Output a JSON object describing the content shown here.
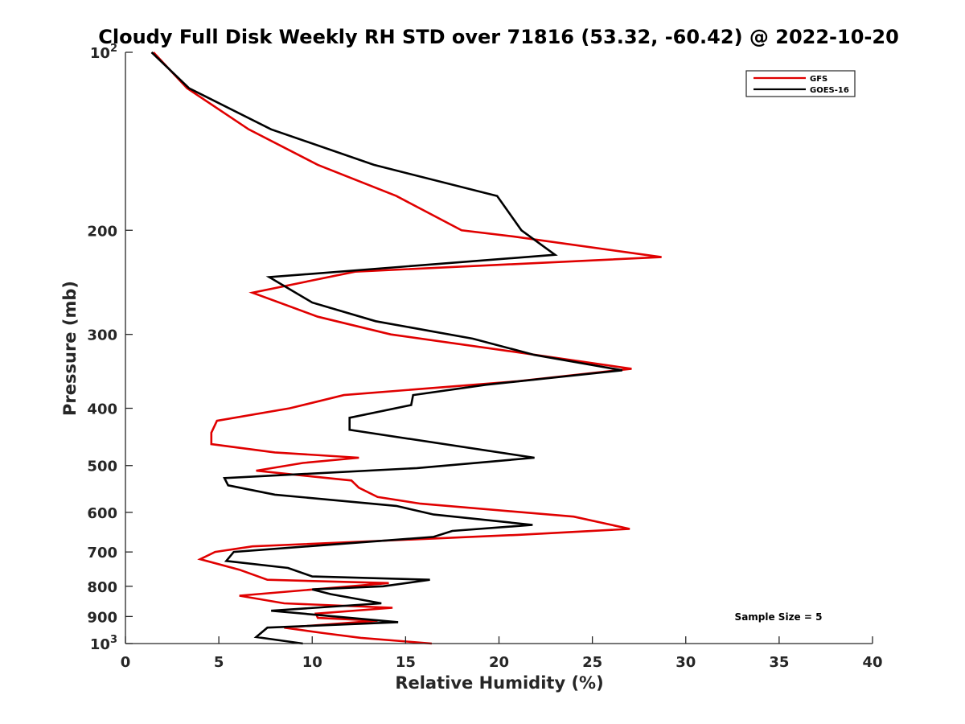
{
  "colors": {
    "gfs": "#e00000",
    "goes": "#000000",
    "axis": "#262626"
  },
  "chart_data": {
    "type": "line",
    "title": "Cloudy Full Disk Weekly RH STD over 71816 (53.32, -60.42) @ 2022-10-20",
    "xlabel": "Relative Humidity (%)",
    "ylabel": "Pressure (mb)",
    "xlim": [
      0,
      40
    ],
    "ylim": [
      100,
      1000
    ],
    "yscale": "log",
    "y_reversed": true,
    "grid": false,
    "legend_position": "top-right",
    "annotation": "Sample Size = 5",
    "x_ticks": [
      {
        "value": 0,
        "label": "0"
      },
      {
        "value": 5,
        "label": "5"
      },
      {
        "value": 10,
        "label": "10"
      },
      {
        "value": 15,
        "label": "15"
      },
      {
        "value": 20,
        "label": "20"
      },
      {
        "value": 25,
        "label": "25"
      },
      {
        "value": 30,
        "label": "30"
      },
      {
        "value": 35,
        "label": "35"
      },
      {
        "value": 40,
        "label": "40"
      }
    ],
    "y_ticks": [
      {
        "value": 100,
        "base": "10",
        "exp": "2"
      },
      {
        "value": 200,
        "label": "200"
      },
      {
        "value": 300,
        "label": "300"
      },
      {
        "value": 400,
        "label": "400"
      },
      {
        "value": 500,
        "label": "500"
      },
      {
        "value": 600,
        "label": "600"
      },
      {
        "value": 700,
        "label": "700"
      },
      {
        "value": 800,
        "label": "800"
      },
      {
        "value": 900,
        "label": "900"
      },
      {
        "value": 1000,
        "base": "10",
        "exp": "3"
      }
    ],
    "series": [
      {
        "name": "GFS",
        "color": "#e00000",
        "points": [
          [
            1.5,
            100
          ],
          [
            3.3,
            115
          ],
          [
            6.6,
            135
          ],
          [
            10.3,
            155
          ],
          [
            14.5,
            175
          ],
          [
            18.0,
            200
          ],
          [
            20.8,
            205
          ],
          [
            28.7,
            222
          ],
          [
            12.3,
            235
          ],
          [
            6.8,
            255
          ],
          [
            10.3,
            280
          ],
          [
            14.2,
            300
          ],
          [
            20.5,
            320
          ],
          [
            27.1,
            343
          ],
          [
            21.0,
            360
          ],
          [
            11.7,
            380
          ],
          [
            8.8,
            400
          ],
          [
            4.9,
            420
          ],
          [
            4.6,
            440
          ],
          [
            4.6,
            460
          ],
          [
            8.0,
            475
          ],
          [
            12.5,
            485
          ],
          [
            9.5,
            495
          ],
          [
            7.0,
            510
          ],
          [
            12.1,
            530
          ],
          [
            12.5,
            545
          ],
          [
            13.5,
            565
          ],
          [
            15.8,
            580
          ],
          [
            24.0,
            610
          ],
          [
            27.0,
            640
          ],
          [
            21.0,
            655
          ],
          [
            6.8,
            685
          ],
          [
            4.8,
            700
          ],
          [
            4.0,
            720
          ],
          [
            6.1,
            750
          ],
          [
            7.6,
            780
          ],
          [
            14.1,
            790
          ],
          [
            6.1,
            830
          ],
          [
            8.5,
            855
          ],
          [
            14.3,
            870
          ],
          [
            10.2,
            890
          ],
          [
            10.3,
            905
          ],
          [
            13.5,
            915
          ],
          [
            8.5,
            940
          ],
          [
            10.6,
            960
          ],
          [
            12.6,
            978
          ],
          [
            16.4,
            1000
          ]
        ]
      },
      {
        "name": "GOES-16",
        "color": "#000000",
        "points": [
          [
            1.4,
            100
          ],
          [
            3.4,
            115
          ],
          [
            7.8,
            135
          ],
          [
            13.3,
            155
          ],
          [
            19.9,
            175
          ],
          [
            21.2,
            200
          ],
          [
            23.0,
            220
          ],
          [
            7.7,
            240
          ],
          [
            10.0,
            265
          ],
          [
            13.4,
            285
          ],
          [
            18.6,
            305
          ],
          [
            21.9,
            325
          ],
          [
            26.6,
            345
          ],
          [
            19.3,
            365
          ],
          [
            15.4,
            380
          ],
          [
            15.3,
            395
          ],
          [
            12.0,
            415
          ],
          [
            12.0,
            435
          ],
          [
            21.9,
            485
          ],
          [
            15.6,
            505
          ],
          [
            5.3,
            525
          ],
          [
            5.5,
            540
          ],
          [
            8.0,
            560
          ],
          [
            14.5,
            585
          ],
          [
            16.5,
            605
          ],
          [
            21.8,
            630
          ],
          [
            17.5,
            645
          ],
          [
            16.5,
            660
          ],
          [
            5.8,
            700
          ],
          [
            5.4,
            725
          ],
          [
            8.7,
            745
          ],
          [
            10.0,
            770
          ],
          [
            16.3,
            780
          ],
          [
            13.8,
            800
          ],
          [
            10.0,
            810
          ],
          [
            11.0,
            825
          ],
          [
            13.7,
            855
          ],
          [
            7.8,
            880
          ],
          [
            14.6,
            920
          ],
          [
            7.6,
            940
          ],
          [
            7.0,
            975
          ],
          [
            9.5,
            1000
          ]
        ]
      }
    ]
  }
}
